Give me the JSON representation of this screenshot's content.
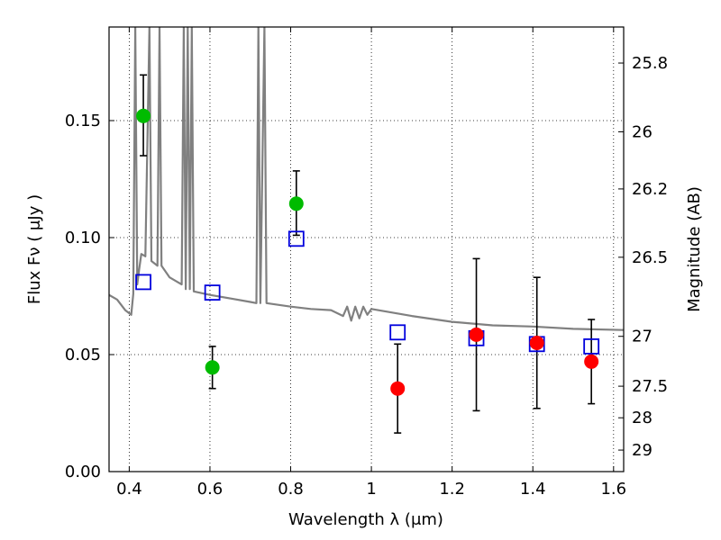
{
  "chart_data": {
    "type": "scatter",
    "title": "",
    "xlabel": "Wavelength  λ (μm)",
    "ylabel": "Flux  Fν  ( μJy )",
    "y2label": "Magnitude (AB)",
    "xlim": [
      0.35,
      1.625
    ],
    "ylim": [
      0.0,
      0.19
    ],
    "grid": true,
    "x_ticks": [
      0.4,
      0.6,
      0.8,
      1.0,
      1.2,
      1.4,
      1.6
    ],
    "x_tick_labels": [
      "0.4",
      "0.6",
      "0.8",
      "1",
      "1.2",
      "1.4",
      "1.6"
    ],
    "y_ticks": [
      0.0,
      0.05,
      0.1,
      0.15
    ],
    "y_tick_labels": [
      "0.00",
      "0.05",
      "0.10",
      "0.15"
    ],
    "y2_ticks": [
      {
        "label": "25.8",
        "flux": 0.1746
      },
      {
        "label": "26",
        "flux": 0.1452
      },
      {
        "label": "26.2",
        "flux": 0.1208
      },
      {
        "label": "26.5",
        "flux": 0.0916
      },
      {
        "label": "27",
        "flux": 0.0578
      },
      {
        "label": "27.5",
        "flux": 0.0365
      },
      {
        "label": "28",
        "flux": 0.023
      },
      {
        "label": "29",
        "flux": 0.0092
      }
    ],
    "series": [
      {
        "marker": "circle",
        "color": "#00bb00",
        "points": [
          {
            "x": 0.435,
            "y": 0.152,
            "err_low": 0.135,
            "err_high": 0.1695
          },
          {
            "x": 0.606,
            "y": 0.0445,
            "err_low": 0.0355,
            "err_high": 0.0535
          },
          {
            "x": 0.814,
            "y": 0.1145,
            "err_low": 0.101,
            "err_high": 0.1285
          }
        ]
      },
      {
        "marker": "circle",
        "color": "#ff0000",
        "points": [
          {
            "x": 1.065,
            "y": 0.0355,
            "err_low": 0.0165,
            "err_high": 0.0545
          },
          {
            "x": 1.26,
            "y": 0.0585,
            "err_low": 0.026,
            "err_high": 0.091
          },
          {
            "x": 1.41,
            "y": 0.055,
            "err_low": 0.027,
            "err_high": 0.083
          },
          {
            "x": 1.545,
            "y": 0.047,
            "err_low": 0.029,
            "err_high": 0.065
          }
        ]
      },
      {
        "marker": "square-open",
        "color": "#0000dd",
        "points": [
          {
            "x": 0.435,
            "y": 0.081
          },
          {
            "x": 0.606,
            "y": 0.0765
          },
          {
            "x": 0.814,
            "y": 0.0995
          },
          {
            "x": 1.065,
            "y": 0.0595
          },
          {
            "x": 1.26,
            "y": 0.057
          },
          {
            "x": 1.41,
            "y": 0.0545
          },
          {
            "x": 1.545,
            "y": 0.0535
          }
        ]
      },
      {
        "marker": "line",
        "color": "#808080",
        "points": [
          {
            "x": 0.35,
            "y": 0.0755
          },
          {
            "x": 0.37,
            "y": 0.0735
          },
          {
            "x": 0.39,
            "y": 0.069
          },
          {
            "x": 0.405,
            "y": 0.067
          },
          {
            "x": 0.41,
            "y": 0.076
          },
          {
            "x": 0.415,
            "y": 0.19
          },
          {
            "x": 0.42,
            "y": 0.08
          },
          {
            "x": 0.425,
            "y": 0.087
          },
          {
            "x": 0.43,
            "y": 0.093
          },
          {
            "x": 0.44,
            "y": 0.092
          },
          {
            "x": 0.45,
            "y": 0.19
          },
          {
            "x": 0.455,
            "y": 0.09
          },
          {
            "x": 0.47,
            "y": 0.088
          },
          {
            "x": 0.475,
            "y": 0.19
          },
          {
            "x": 0.48,
            "y": 0.088
          },
          {
            "x": 0.5,
            "y": 0.083
          },
          {
            "x": 0.52,
            "y": 0.081
          },
          {
            "x": 0.53,
            "y": 0.08
          },
          {
            "x": 0.535,
            "y": 0.19
          },
          {
            "x": 0.54,
            "y": 0.078
          },
          {
            "x": 0.545,
            "y": 0.19
          },
          {
            "x": 0.55,
            "y": 0.078
          },
          {
            "x": 0.555,
            "y": 0.19
          },
          {
            "x": 0.56,
            "y": 0.077
          },
          {
            "x": 0.6,
            "y": 0.0755
          },
          {
            "x": 0.65,
            "y": 0.074
          },
          {
            "x": 0.7,
            "y": 0.0725
          },
          {
            "x": 0.715,
            "y": 0.072
          },
          {
            "x": 0.72,
            "y": 0.19
          },
          {
            "x": 0.725,
            "y": 0.072
          },
          {
            "x": 0.735,
            "y": 0.19
          },
          {
            "x": 0.74,
            "y": 0.072
          },
          {
            "x": 0.8,
            "y": 0.0705
          },
          {
            "x": 0.85,
            "y": 0.0695
          },
          {
            "x": 0.9,
            "y": 0.069
          },
          {
            "x": 0.93,
            "y": 0.0665
          },
          {
            "x": 0.94,
            "y": 0.0705
          },
          {
            "x": 0.95,
            "y": 0.0645
          },
          {
            "x": 0.96,
            "y": 0.0705
          },
          {
            "x": 0.97,
            "y": 0.0655
          },
          {
            "x": 0.98,
            "y": 0.0705
          },
          {
            "x": 0.99,
            "y": 0.067
          },
          {
            "x": 1.0,
            "y": 0.0695
          },
          {
            "x": 1.1,
            "y": 0.0665
          },
          {
            "x": 1.2,
            "y": 0.064
          },
          {
            "x": 1.3,
            "y": 0.0625
          },
          {
            "x": 1.4,
            "y": 0.062
          },
          {
            "x": 1.5,
            "y": 0.061
          },
          {
            "x": 1.625,
            "y": 0.0605
          }
        ]
      }
    ]
  }
}
